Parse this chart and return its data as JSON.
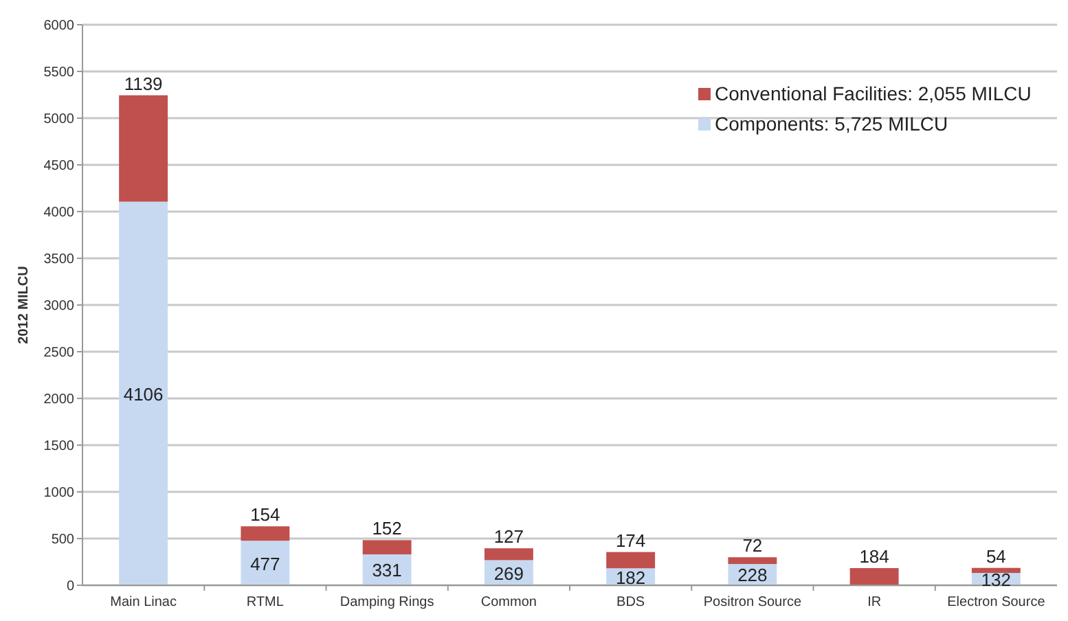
{
  "chart_data": {
    "type": "bar",
    "stacked": true,
    "ylabel": "2012 MILCU",
    "categories": [
      "Main Linac",
      "RTML",
      "Damping Rings",
      "Common",
      "BDS",
      "Positron Source",
      "IR",
      "Electron Source"
    ],
    "series": [
      {
        "name": "Components: 5,725 MILCU",
        "color": "#c6d9f1",
        "values": [
          4106,
          477,
          331,
          269,
          182,
          228,
          null,
          132
        ]
      },
      {
        "name": "Conventional Facilities: 2,055 MILCU",
        "color": "#c0504d",
        "values": [
          1139,
          154,
          152,
          127,
          174,
          72,
          184,
          54
        ]
      }
    ],
    "ylim": [
      0,
      6000
    ],
    "yticks": [
      0,
      500,
      1000,
      1500,
      2000,
      2500,
      3000,
      3500,
      4000,
      4500,
      5000,
      5500,
      6000
    ],
    "grid": "y",
    "legend": "top right",
    "data_labels": true
  }
}
